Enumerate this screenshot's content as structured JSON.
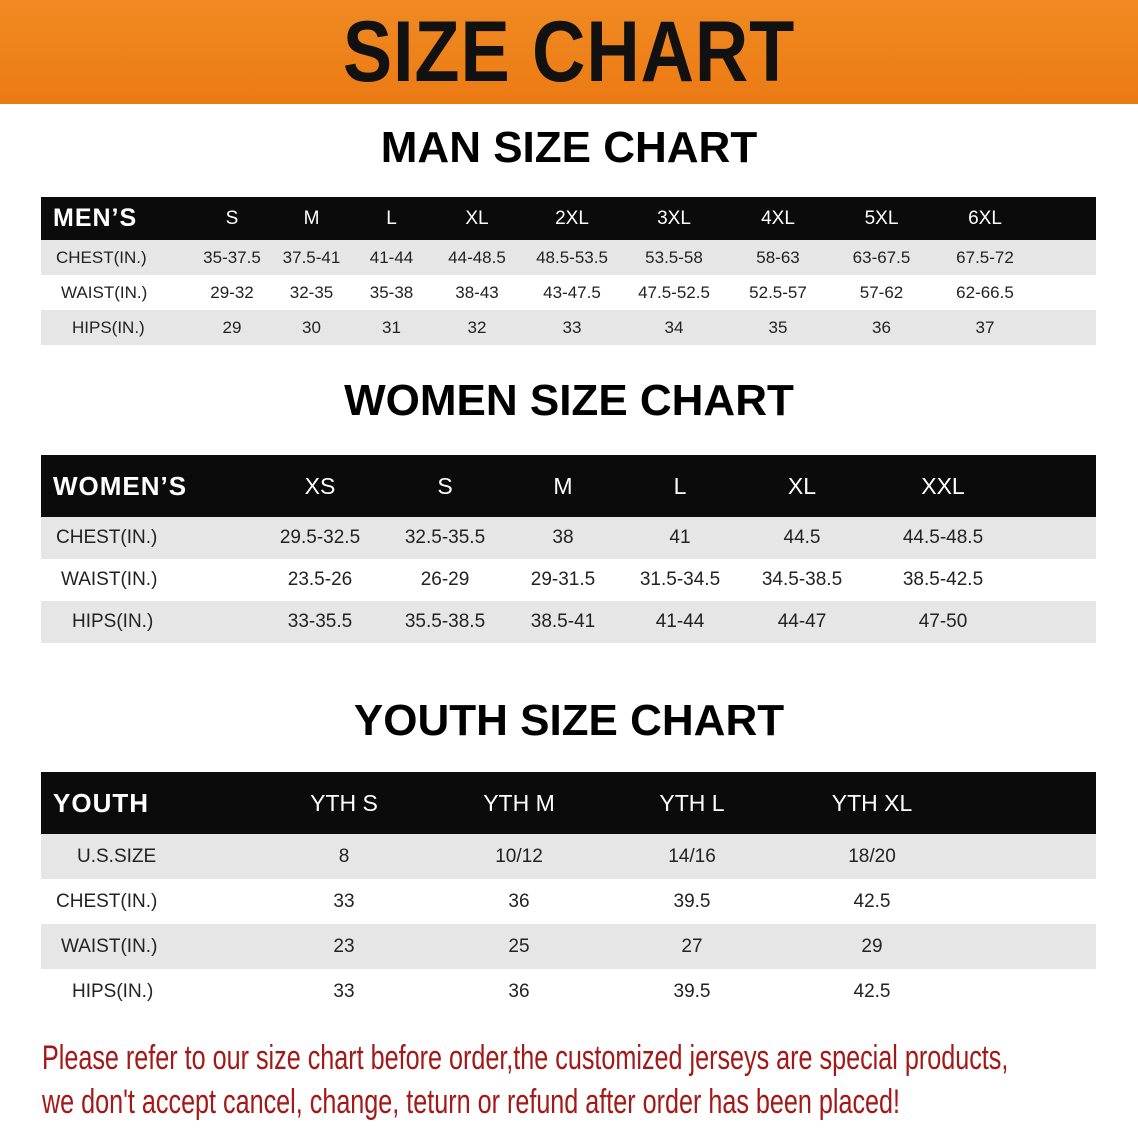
{
  "banner_title": "SIZE CHART",
  "colors": {
    "banner": "#ee8118",
    "header_row": "#0b0b0b",
    "stripe": "#e6e6e6",
    "notice": "#a51818"
  },
  "men": {
    "title": "MAN SIZE CHART",
    "header": [
      "MEN’S",
      "S",
      "M",
      "L",
      "XL",
      "2XL",
      "3XL",
      "4XL",
      "5XL",
      "6XL"
    ],
    "rows": [
      [
        "CHEST(IN.)",
        "35-37.5",
        "37.5-41",
        "41-44",
        "44-48.5",
        "48.5-53.5",
        "53.5-58",
        "58-63",
        "63-67.5",
        "67.5-72"
      ],
      [
        "WAIST(IN.)",
        "29-32",
        "32-35",
        "35-38",
        "38-43",
        "43-47.5",
        "47.5-52.5",
        "52.5-57",
        "57-62",
        "62-66.5"
      ],
      [
        "HIPS(IN.)",
        "29",
        "30",
        "31",
        "32",
        "33",
        "34",
        "35",
        "36",
        "37"
      ]
    ]
  },
  "women": {
    "title": "WOMEN SIZE CHART",
    "header": [
      "WOMEN’S",
      "XS",
      "S",
      "M",
      "L",
      "XL",
      "XXL"
    ],
    "rows": [
      [
        "CHEST(IN.)",
        "29.5-32.5",
        "32.5-35.5",
        "38",
        "41",
        "44.5",
        "44.5-48.5"
      ],
      [
        "WAIST(IN.)",
        "23.5-26",
        "26-29",
        "29-31.5",
        "31.5-34.5",
        "34.5-38.5",
        "38.5-42.5"
      ],
      [
        "HIPS(IN.)",
        "33-35.5",
        "35.5-38.5",
        "38.5-41",
        "41-44",
        "44-47",
        "47-50"
      ]
    ]
  },
  "youth": {
    "title": "YOUTH SIZE CHART",
    "header": [
      "YOUTH",
      "YTH S",
      "YTH M",
      "YTH L",
      "YTH XL"
    ],
    "rows": [
      [
        "U.S.SIZE",
        "8",
        "10/12",
        "14/16",
        "18/20"
      ],
      [
        "CHEST(IN.)",
        "33",
        "36",
        "39.5",
        "42.5"
      ],
      [
        "WAIST(IN.)",
        "23",
        "25",
        "27",
        "29"
      ],
      [
        "HIPS(IN.)",
        "33",
        "36",
        "39.5",
        "42.5"
      ]
    ]
  },
  "notice": {
    "line1": "Please refer to our size chart before order,the customized jerseys are special products,",
    "line2": "we don't accept cancel, change, teturn or refund after order has been placed!"
  }
}
